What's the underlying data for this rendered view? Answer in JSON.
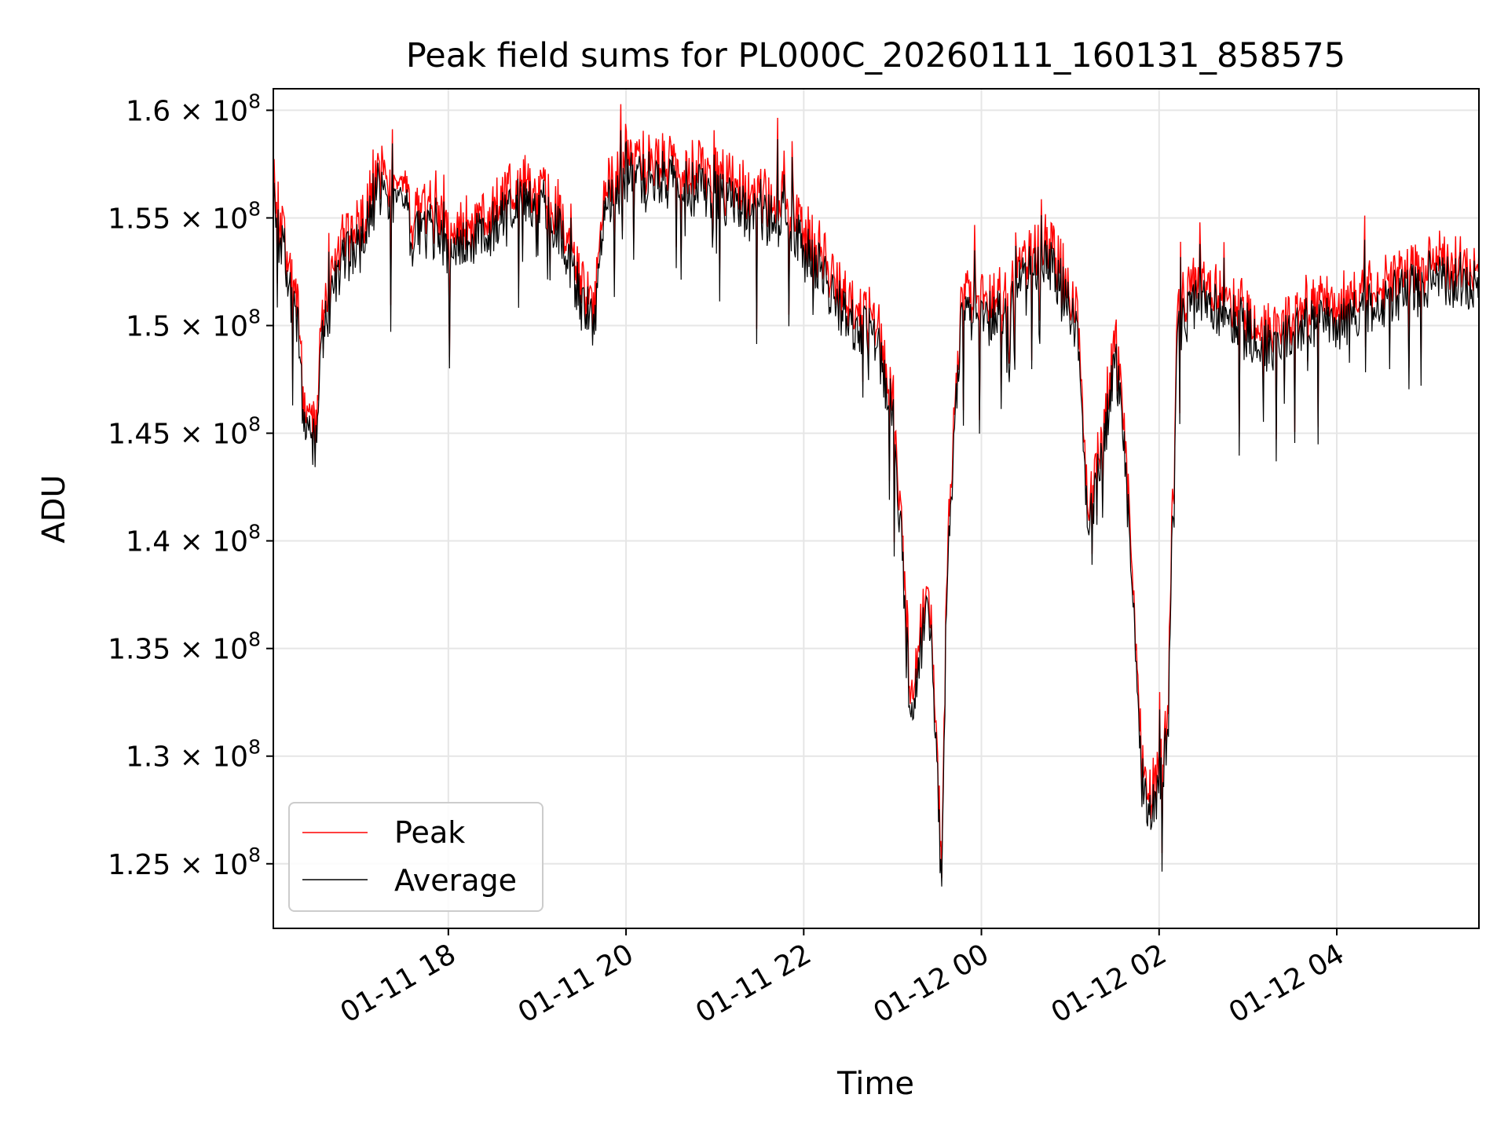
{
  "chart_data": {
    "type": "line",
    "title": "Peak field sums for PL000C_20260111_160131_858575",
    "xlabel": "Time",
    "ylabel": "ADU",
    "x_range_hours": [
      16.03,
      29.6
    ],
    "ylim": [
      122000000,
      161000000
    ],
    "grid": true,
    "legend": {
      "placement": "lower-left",
      "entries": [
        {
          "label": "Peak",
          "color": "#ff0000"
        },
        {
          "label": "Average",
          "color": "#000000"
        }
      ]
    },
    "x_ticks": [
      {
        "value_hours": 18,
        "label": "01-11 18"
      },
      {
        "value_hours": 20,
        "label": "01-11 20"
      },
      {
        "value_hours": 22,
        "label": "01-11 22"
      },
      {
        "value_hours": 24,
        "label": "01-12 00"
      },
      {
        "value_hours": 26,
        "label": "01-12 02"
      },
      {
        "value_hours": 28,
        "label": "01-12 04"
      }
    ],
    "y_ticks": [
      {
        "value": 125000000,
        "mantissa": "1.25"
      },
      {
        "value": 130000000,
        "mantissa": "1.3"
      },
      {
        "value": 135000000,
        "mantissa": "1.35"
      },
      {
        "value": 140000000,
        "mantissa": "1.4"
      },
      {
        "value": 145000000,
        "mantissa": "1.45"
      },
      {
        "value": 150000000,
        "mantissa": "1.5"
      },
      {
        "value": 155000000,
        "mantissa": "1.55"
      },
      {
        "value": 160000000,
        "mantissa": "1.6"
      }
    ],
    "y_tick_times": "×",
    "y_tick_base": "10",
    "y_tick_exponent": "8",
    "baseline_x_hours": [
      16.03,
      16.2,
      16.3,
      16.4,
      16.5,
      16.6,
      16.8,
      17.0,
      17.2,
      17.4,
      17.6,
      17.8,
      18.0,
      18.5,
      19.0,
      19.3,
      19.5,
      19.65,
      19.75,
      20.0,
      20.3,
      20.6,
      21.0,
      21.4,
      21.8,
      22.2,
      22.5,
      22.8,
      23.0,
      23.1,
      23.2,
      23.3,
      23.4,
      23.5,
      23.55,
      23.6,
      23.7,
      23.8,
      24.0,
      24.3,
      24.5,
      24.7,
      24.9,
      25.1,
      25.2,
      25.3,
      25.4,
      25.5,
      25.6,
      25.7,
      25.8,
      25.9,
      26.0,
      26.1,
      26.2,
      26.4,
      26.8,
      27.2,
      27.6,
      28.0,
      28.5,
      29.0,
      29.6
    ],
    "baseline_y": [
      156000000,
      152000000,
      150000000,
      145000000,
      144500000,
      150000000,
      153000000,
      153500000,
      156500000,
      156000000,
      154000000,
      154500000,
      153500000,
      154500000,
      156000000,
      154000000,
      151000000,
      150000000,
      155500000,
      156500000,
      157000000,
      156500000,
      156000000,
      155000000,
      155000000,
      152500000,
      150000000,
      149500000,
      146000000,
      140000000,
      132000000,
      134000000,
      138000000,
      130000000,
      124000000,
      136000000,
      146000000,
      151000000,
      150000000,
      151000000,
      152500000,
      153000000,
      152000000,
      149500000,
      140000000,
      143000000,
      145000000,
      148500000,
      145000000,
      138000000,
      129000000,
      127500000,
      128500000,
      131000000,
      149500000,
      151000000,
      150500000,
      149000000,
      150000000,
      150000000,
      151000000,
      152000000,
      152000000
    ]
  }
}
